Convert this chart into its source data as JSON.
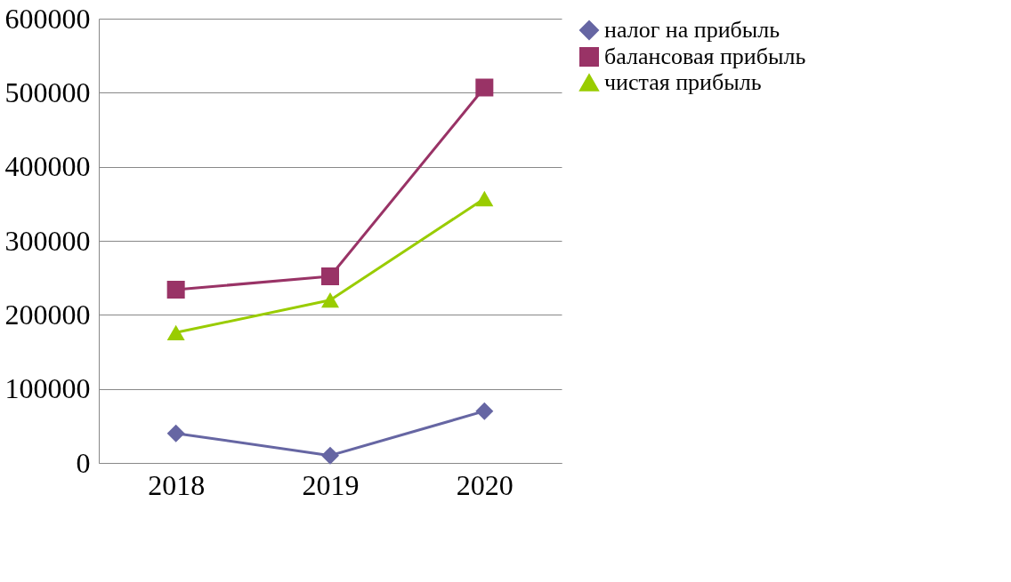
{
  "chart_data": {
    "type": "line",
    "categories": [
      "2018",
      "2019",
      "2020"
    ],
    "series": [
      {
        "name": "налог на прибыль",
        "color": "#6666a3",
        "marker": "diamond",
        "values": [
          40000,
          10000,
          70000
        ]
      },
      {
        "name": "балансовая прибыль",
        "color": "#993366",
        "marker": "square",
        "values": [
          234000,
          252000,
          507000
        ]
      },
      {
        "name": "чистая прибыль",
        "color": "#99cc00",
        "marker": "triangle",
        "values": [
          176000,
          220000,
          357000
        ]
      }
    ],
    "ylim": [
      0,
      600000
    ],
    "yticks": [
      0,
      100000,
      200000,
      300000,
      400000,
      500000,
      600000
    ],
    "grid": "y",
    "legend": "right"
  }
}
